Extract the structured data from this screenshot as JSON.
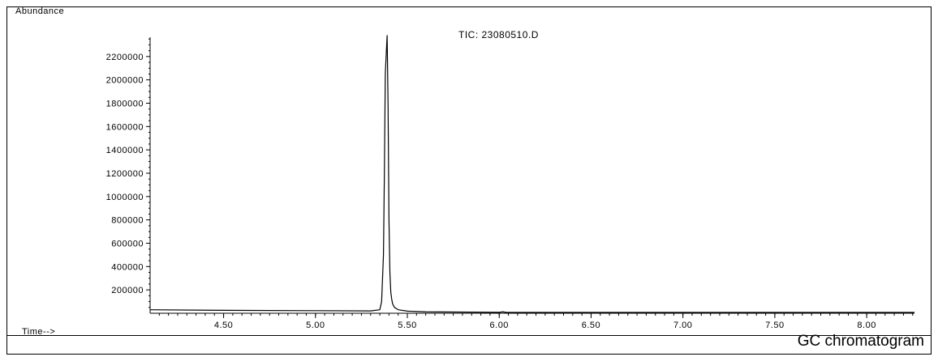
{
  "caption": "GC chromatogram",
  "chart_data": {
    "type": "line",
    "title": "TIC: 23080510.D",
    "ylabel": "Abundance",
    "xlabel": "Time-->",
    "xlim": [
      4.1,
      8.26
    ],
    "ylim": [
      0,
      2400000
    ],
    "x_ticks": [
      4.5,
      5.0,
      5.5,
      6.0,
      6.5,
      7.0,
      7.5,
      8.0
    ],
    "x_tick_labels": [
      "4.50",
      "5.00",
      "5.50",
      "6.00",
      "6.50",
      "7.00",
      "7.50",
      "8.00"
    ],
    "y_ticks": [
      200000,
      400000,
      600000,
      800000,
      1000000,
      1200000,
      1400000,
      1600000,
      1800000,
      2000000,
      2200000
    ],
    "y_tick_labels": [
      "200000",
      "400000",
      "600000",
      "800000",
      "1000000",
      "1200000",
      "1400000",
      "1600000",
      "1800000",
      "2000000",
      "2200000"
    ],
    "grid": false,
    "series": [
      {
        "color": "#000000",
        "x": [
          4.1,
          4.5,
          5.0,
          5.3,
          5.35,
          5.36,
          5.37,
          5.375,
          5.38,
          5.385,
          5.39,
          5.395,
          5.4,
          5.405,
          5.41,
          5.415,
          5.42,
          5.43,
          5.45,
          5.5,
          5.6,
          6.0,
          6.02,
          6.04,
          6.5,
          7.0,
          7.5,
          8.0,
          8.26
        ],
        "y": [
          30000,
          25000,
          22000,
          20000,
          30000,
          100000,
          500000,
          1200000,
          2050000,
          2220000,
          2380000,
          1800000,
          800000,
          350000,
          180000,
          120000,
          80000,
          50000,
          30000,
          18000,
          12000,
          8000,
          12000,
          7000,
          7000,
          7000,
          7000,
          7000,
          7000
        ]
      }
    ]
  }
}
